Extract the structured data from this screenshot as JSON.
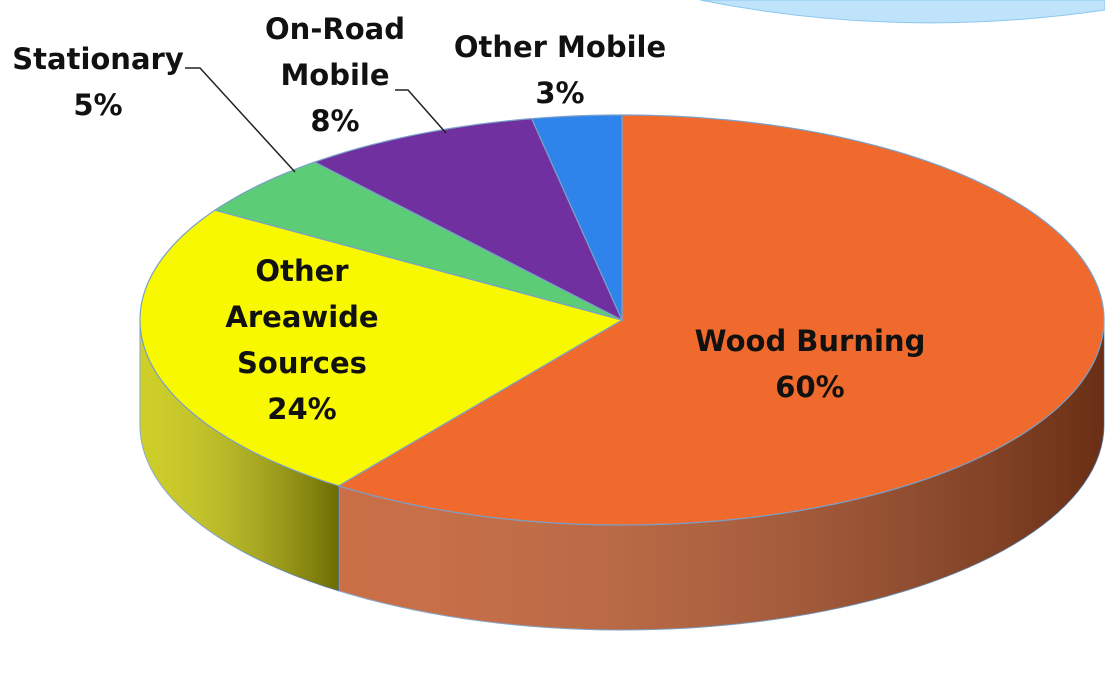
{
  "chart_data": {
    "type": "pie3d",
    "categories": [
      "Wood Burning",
      "Other Areawide Sources",
      "Stationary",
      "On-Road Mobile",
      "Other Mobile"
    ],
    "values": [
      60,
      24,
      5,
      8,
      3
    ],
    "value_labels": [
      "60%",
      "24%",
      "5%",
      "8%",
      "3%"
    ],
    "colors": [
      "#f06a2e",
      "#f8f800",
      "#5ccc76",
      "#7030a0",
      "#2f84ec"
    ]
  }
}
